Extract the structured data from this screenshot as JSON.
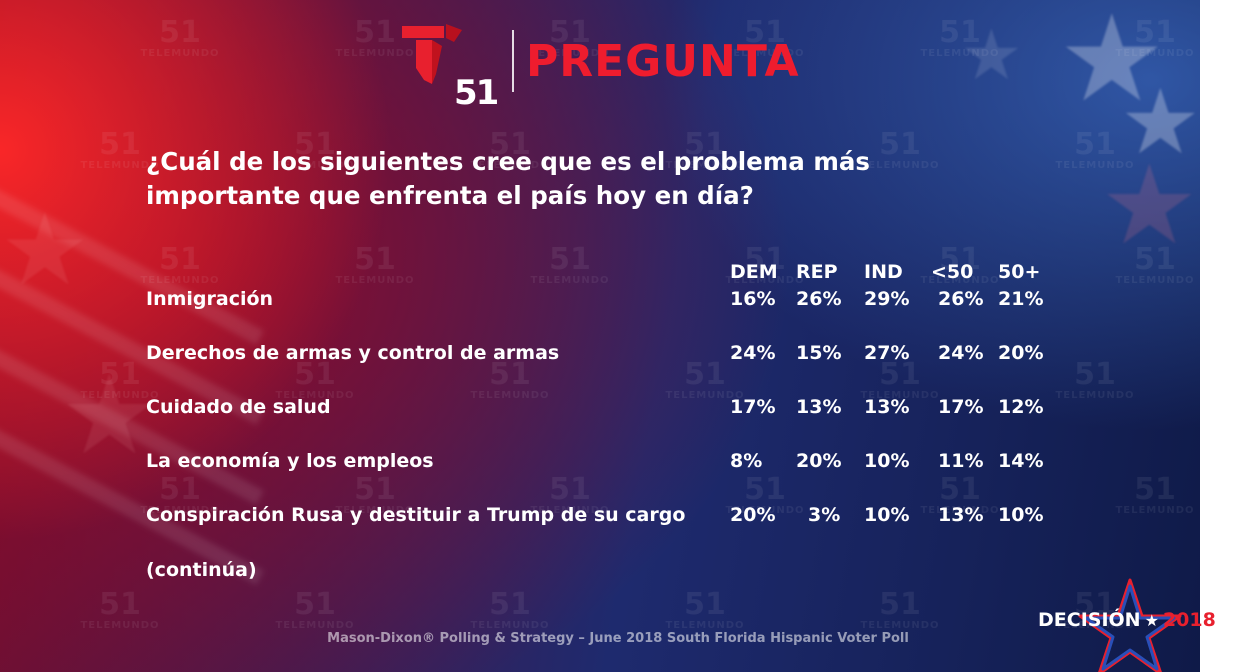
{
  "header": {
    "logo_number": "51",
    "title": "PREGUNTA"
  },
  "watermark": {
    "number": "51",
    "word": "TELEMUNDO"
  },
  "question": "¿Cuál de los siguientes cree que es el problema más importante que enfrenta el país hoy en día?",
  "table": {
    "columns": [
      "DEM",
      "REP",
      "IND",
      "<50",
      "50+"
    ],
    "rows": [
      {
        "label": "Inmigración",
        "values": [
          "16%",
          "26%",
          "29%",
          "26%",
          "21%"
        ]
      },
      {
        "label": "Derechos de armas y control de armas",
        "values": [
          "24%",
          "15%",
          "27%",
          "24%",
          "20%"
        ]
      },
      {
        "label": "Cuidado de salud",
        "values": [
          "17%",
          "13%",
          "13%",
          "17%",
          "12%"
        ]
      },
      {
        "label": "La economía y los empleos",
        "values": [
          "8%",
          "20%",
          "10%",
          "11%",
          "14%"
        ]
      },
      {
        "label": "Conspiración Rusa y destituir a Trump de su cargo",
        "values": [
          "20%",
          "3%",
          "10%",
          "13%",
          "10%"
        ]
      }
    ]
  },
  "continued_label": "(continúa)",
  "source": "Mason-Dixon® Polling & Strategy – June 2018 South Florida Hispanic Voter Poll",
  "badge": {
    "word": "DECISIÓN",
    "year": "2018"
  },
  "colors": {
    "brand_red": "#ee1c2e",
    "text": "#ffffff"
  },
  "icons": [
    "telemundo-t-logo-icon",
    "star-icon"
  ]
}
